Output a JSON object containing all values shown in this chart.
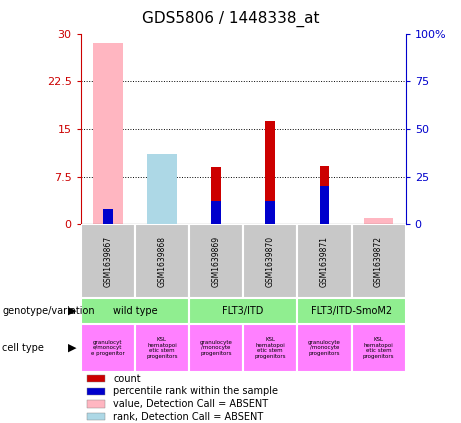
{
  "title": "GDS5806 / 1448338_at",
  "samples": [
    "GSM1639867",
    "GSM1639868",
    "GSM1639869",
    "GSM1639870",
    "GSM1639871",
    "GSM1639872"
  ],
  "count_values": [
    0,
    0,
    9.0,
    16.2,
    9.2,
    0
  ],
  "percentile_values": [
    8.0,
    0,
    12.0,
    12.0,
    20.0,
    0
  ],
  "absent_value_values": [
    28.5,
    9.0,
    0,
    0,
    0,
    1.0
  ],
  "absent_rank_values": [
    0,
    11.0,
    0,
    0,
    0,
    0
  ],
  "ylim_left": [
    0,
    30
  ],
  "ylim_right": [
    0,
    100
  ],
  "yticks_left": [
    0,
    7.5,
    15,
    22.5,
    30
  ],
  "yticks_right": [
    0,
    25,
    50,
    75,
    100
  ],
  "ytick_labels_left": [
    "0",
    "7.5",
    "15",
    "22.5",
    "30"
  ],
  "ytick_labels_right": [
    "0",
    "25",
    "50",
    "75",
    "100%"
  ],
  "geno_info": [
    {
      "label": "wild type",
      "start": 0,
      "end": 2,
      "color": "#90EE90"
    },
    {
      "label": "FLT3/ITD",
      "start": 2,
      "end": 4,
      "color": "#90EE90"
    },
    {
      "label": "FLT3/ITD-SmoM2",
      "start": 4,
      "end": 6,
      "color": "#90EE90"
    }
  ],
  "cell_labels": [
    "granulocyt\ne/monocyt\ne progenitor",
    "KSL\nhematopoi\netic stem\nprogenitors",
    "granulocyte\n/monocyte\nprogenitors",
    "KSL\nhematopoi\netic stem\nprogenitors",
    "granulocyte\n/monocyte\nprogenitors",
    "KSL\nhematopoi\netic stem\nprogenitors"
  ],
  "count_color": "#CC0000",
  "percentile_color": "#0000CC",
  "absent_value_color": "#FFB6C1",
  "absent_rank_color": "#ADD8E6",
  "left_axis_color": "#CC0000",
  "right_axis_color": "#0000CC",
  "sample_box_color": "#C8C8C8",
  "cell_type_color": "#FF80FF",
  "legend_items": [
    {
      "color": "#CC0000",
      "label": "count"
    },
    {
      "color": "#0000CC",
      "label": "percentile rank within the sample"
    },
    {
      "color": "#FFB6C1",
      "label": "value, Detection Call = ABSENT"
    },
    {
      "color": "#ADD8E6",
      "label": "rank, Detection Call = ABSENT"
    }
  ],
  "wide_bar_width": 0.55,
  "narrow_bar_width": 0.18
}
